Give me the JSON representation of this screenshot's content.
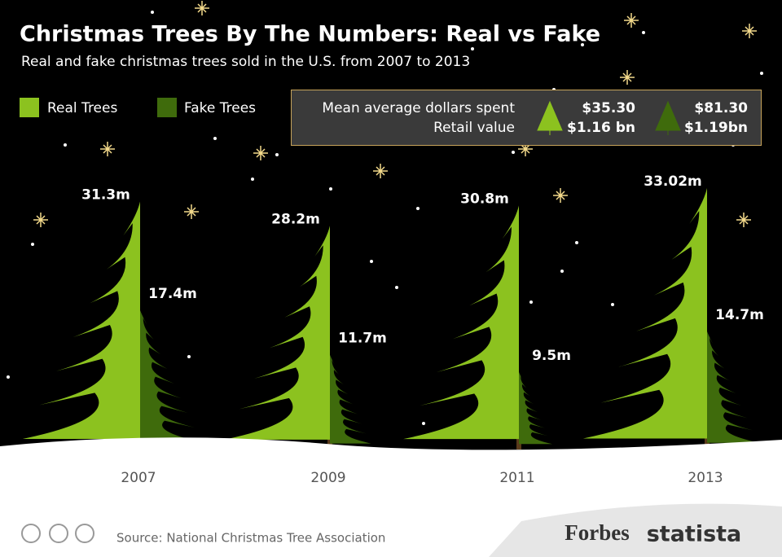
{
  "chart_data": {
    "type": "tree-bar",
    "title": "Christmas Trees By The Numbers: Real vs Fake",
    "subtitle": "Real and fake christmas trees sold in the U.S. from 2007 to 2013",
    "categories": [
      "2007",
      "2009",
      "2011",
      "2013"
    ],
    "series": [
      {
        "name": "Real Trees",
        "color": "#8cc21f",
        "values": [
          31.3,
          28.2,
          30.8,
          33.02
        ],
        "value_labels": [
          "31.3m",
          "28.2m",
          "30.8m",
          "33.02m"
        ]
      },
      {
        "name": "Fake Trees",
        "color": "#3f6b0c",
        "values": [
          17.4,
          11.7,
          9.5,
          14.7
        ],
        "value_labels": [
          "17.4m",
          "11.7m",
          "9.5m",
          "14.7m"
        ]
      }
    ],
    "info_box": {
      "rows": [
        "Mean average dollars spent",
        "Retail value"
      ],
      "real": [
        "$35.30",
        "$1.16 bn"
      ],
      "fake": [
        "$81.30",
        "$1.19bn"
      ]
    },
    "source": "Source: National Christmas Tree Association",
    "brands": [
      "Forbes",
      "statista"
    ]
  }
}
